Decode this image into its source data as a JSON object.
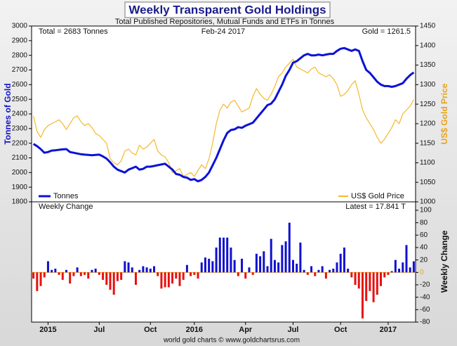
{
  "chart_data": [
    {
      "type": "line",
      "title": "Weekly Transparent Gold Holdings",
      "subtitle": "Total Published Repositories, Mutual Funds and ETFs in Tonnes",
      "annotations": [
        "Total = 2683 Tonnes",
        "Feb-24  2017",
        "Gold = 1261.5"
      ],
      "ylabel": "Tonnes of Gold",
      "y2label": "US$ Gold Price",
      "ylim": [
        1800,
        3000
      ],
      "yticks": [
        1800,
        1900,
        2000,
        2100,
        2200,
        2300,
        2400,
        2500,
        2600,
        2700,
        2800,
        2900,
        3000
      ],
      "y2lim": [
        1000,
        1450
      ],
      "y2ticks": [
        1000,
        1050,
        1100,
        1150,
        1200,
        1250,
        1300,
        1350,
        1400,
        1450
      ],
      "grid": false,
      "series": [
        {
          "name": "Tonnes",
          "color": "#0c12d6",
          "values": [
            2195,
            2180,
            2160,
            2135,
            2140,
            2150,
            2152,
            2155,
            2158,
            2160,
            2140,
            2135,
            2130,
            2125,
            2122,
            2120,
            2118,
            2120,
            2122,
            2110,
            2095,
            2070,
            2040,
            2020,
            2010,
            2000,
            2020,
            2030,
            2040,
            2020,
            2025,
            2040,
            2040,
            2045,
            2050,
            2055,
            2060,
            2040,
            2020,
            1990,
            1985,
            1970,
            1965,
            1950,
            1955,
            1940,
            1950,
            1970,
            2000,
            2050,
            2100,
            2160,
            2220,
            2270,
            2290,
            2295,
            2310,
            2305,
            2320,
            2330,
            2340,
            2370,
            2400,
            2430,
            2460,
            2470,
            2500,
            2550,
            2600,
            2660,
            2700,
            2750,
            2760,
            2780,
            2800,
            2810,
            2800,
            2800,
            2805,
            2800,
            2805,
            2810,
            2810,
            2830,
            2845,
            2850,
            2840,
            2830,
            2840,
            2830,
            2760,
            2700,
            2680,
            2650,
            2620,
            2600,
            2590,
            2590,
            2585,
            2590,
            2600,
            2610,
            2640,
            2665,
            2683
          ]
        },
        {
          "name": "US$ Gold Price",
          "color": "#f5b82a",
          "axis": "y2",
          "values": [
            1220,
            1180,
            1165,
            1185,
            1195,
            1200,
            1205,
            1210,
            1200,
            1185,
            1200,
            1215,
            1220,
            1205,
            1195,
            1200,
            1190,
            1175,
            1170,
            1160,
            1150,
            1110,
            1100,
            1095,
            1105,
            1130,
            1135,
            1125,
            1120,
            1145,
            1135,
            1140,
            1150,
            1160,
            1130,
            1120,
            1115,
            1100,
            1075,
            1080,
            1085,
            1065,
            1070,
            1075,
            1065,
            1080,
            1095,
            1085,
            1110,
            1150,
            1200,
            1235,
            1250,
            1240,
            1255,
            1260,
            1245,
            1230,
            1235,
            1240,
            1270,
            1290,
            1275,
            1265,
            1260,
            1275,
            1295,
            1320,
            1330,
            1345,
            1355,
            1365,
            1345,
            1340,
            1335,
            1330,
            1340,
            1345,
            1330,
            1325,
            1320,
            1325,
            1315,
            1300,
            1270,
            1275,
            1285,
            1300,
            1310,
            1275,
            1235,
            1215,
            1200,
            1185,
            1165,
            1150,
            1160,
            1175,
            1190,
            1210,
            1200,
            1225,
            1235,
            1245,
            1261.5
          ]
        }
      ],
      "legend": [
        "lower left",
        "lower right"
      ]
    },
    {
      "type": "bar",
      "title": "Weekly Change",
      "annotation": "Latest = 17.841 T",
      "ylabel": "Weekly Change",
      "footer": "world gold charts © www.goldchartsrus.com",
      "ylim": [
        -80,
        100
      ],
      "yticks": [
        -80,
        -60,
        -40,
        -20,
        0,
        20,
        40,
        60,
        80,
        100
      ],
      "positive_color": "#1010d0",
      "negative_color": "#e81010",
      "categories": [
        null,
        null,
        null,
        null,
        "2015",
        null,
        null,
        null,
        null,
        null,
        null,
        null,
        null,
        null,
        null,
        null,
        null,
        null,
        "Jul",
        null,
        null,
        null,
        null,
        null,
        null,
        null,
        null,
        null,
        null,
        null,
        null,
        null,
        "Oct",
        null,
        null,
        null,
        null,
        null,
        null,
        null,
        null,
        null,
        null,
        null,
        "2016",
        null,
        null,
        null,
        null,
        null,
        null,
        null,
        null,
        null,
        null,
        null,
        null,
        null,
        "Apr",
        null,
        null,
        null,
        null,
        null,
        null,
        null,
        null,
        null,
        null,
        null,
        null,
        "Jul",
        null,
        null,
        null,
        null,
        null,
        null,
        null,
        null,
        null,
        null,
        null,
        null,
        "Oct",
        null,
        null,
        null,
        null,
        null,
        null,
        null,
        null,
        null,
        null,
        null,
        null,
        "2017",
        null,
        null,
        null,
        null,
        null,
        null,
        null
      ],
      "values": [
        -10,
        -30,
        -22,
        -8,
        18,
        4,
        6,
        -4,
        -12,
        4,
        -18,
        -6,
        8,
        -6,
        -4,
        -10,
        4,
        6,
        -4,
        -12,
        -20,
        -28,
        -36,
        -14,
        -12,
        18,
        16,
        8,
        -20,
        4,
        10,
        8,
        6,
        10,
        -6,
        -26,
        -24,
        -24,
        -18,
        -10,
        -22,
        -12,
        12,
        -6,
        -4,
        -10,
        16,
        24,
        22,
        18,
        40,
        56,
        56,
        56,
        40,
        20,
        -6,
        22,
        -10,
        8,
        -4,
        30,
        26,
        34,
        10,
        54,
        20,
        16,
        44,
        50,
        80,
        20,
        14,
        48,
        4,
        -4,
        10,
        -6,
        4,
        10,
        -10,
        4,
        6,
        16,
        30,
        40,
        6,
        -8,
        -20,
        -26,
        -74,
        -46,
        -30,
        -48,
        -36,
        -22,
        -8,
        -4,
        2,
        20,
        6,
        16,
        44,
        8,
        17.841
      ]
    }
  ]
}
